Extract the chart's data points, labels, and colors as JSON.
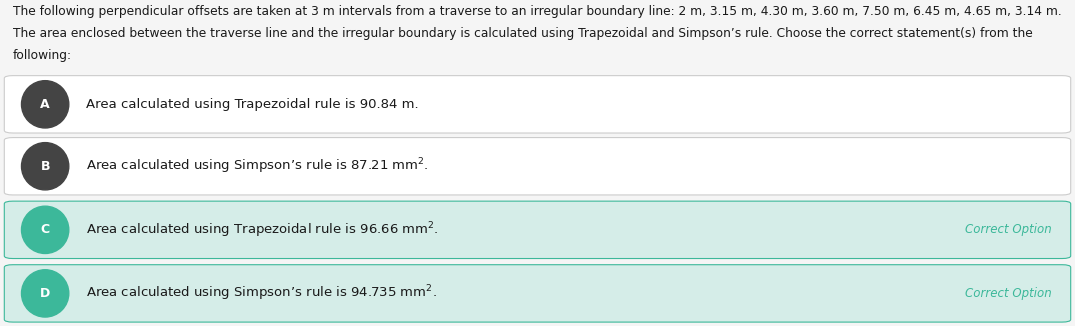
{
  "question_text_line1": "The following perpendicular offsets are taken at 3 m intervals from a traverse to an irregular boundary line: 2 m, 3.15 m, 4.30 m, 3.60 m, 7.50 m, 6.45 m, 4.65 m, 3.14 m.",
  "question_text_line2": "The area enclosed between the traverse line and the irregular boundary is calculated using Trapezoidal and Simpson’s rule. Choose the correct statement(s) from the",
  "question_text_line3": "following:",
  "options": [
    {
      "label": "A",
      "text_before": "Area calculated using Trapezoidal rule is 90.84 m.",
      "text_after": "",
      "has_super": false,
      "correct": false,
      "bg_color": "#ffffff",
      "label_bg": "#444444",
      "label_text_color": "#ffffff"
    },
    {
      "label": "B",
      "text_before": "Area calculated using Simpson’s rule is 87.21 m",
      "text_after": ".",
      "has_super": true,
      "correct": false,
      "bg_color": "#ffffff",
      "label_bg": "#444444",
      "label_text_color": "#ffffff"
    },
    {
      "label": "C",
      "text_before": "Area calculated using Trapezoidal rule is 96.66 m",
      "text_after": ".",
      "has_super": true,
      "correct": true,
      "bg_color": "#d5ede8",
      "label_bg": "#3cb89a",
      "label_text_color": "#ffffff",
      "correct_label": "Correct Option",
      "correct_label_color": "#3cb89a"
    },
    {
      "label": "D",
      "text_before": "Area calculated using Simpson’s rule is 94.735 m",
      "text_after": ".",
      "has_super": true,
      "correct": true,
      "bg_color": "#d5ede8",
      "label_bg": "#3cb89a",
      "label_text_color": "#ffffff",
      "correct_label": "Correct Option",
      "correct_label_color": "#3cb89a"
    }
  ],
  "page_bg": "#f5f5f5",
  "border_color": "#cccccc",
  "correct_border_color": "#3cb89a",
  "question_font_size": 8.8,
  "option_font_size": 9.5,
  "correct_font_size": 8.5
}
